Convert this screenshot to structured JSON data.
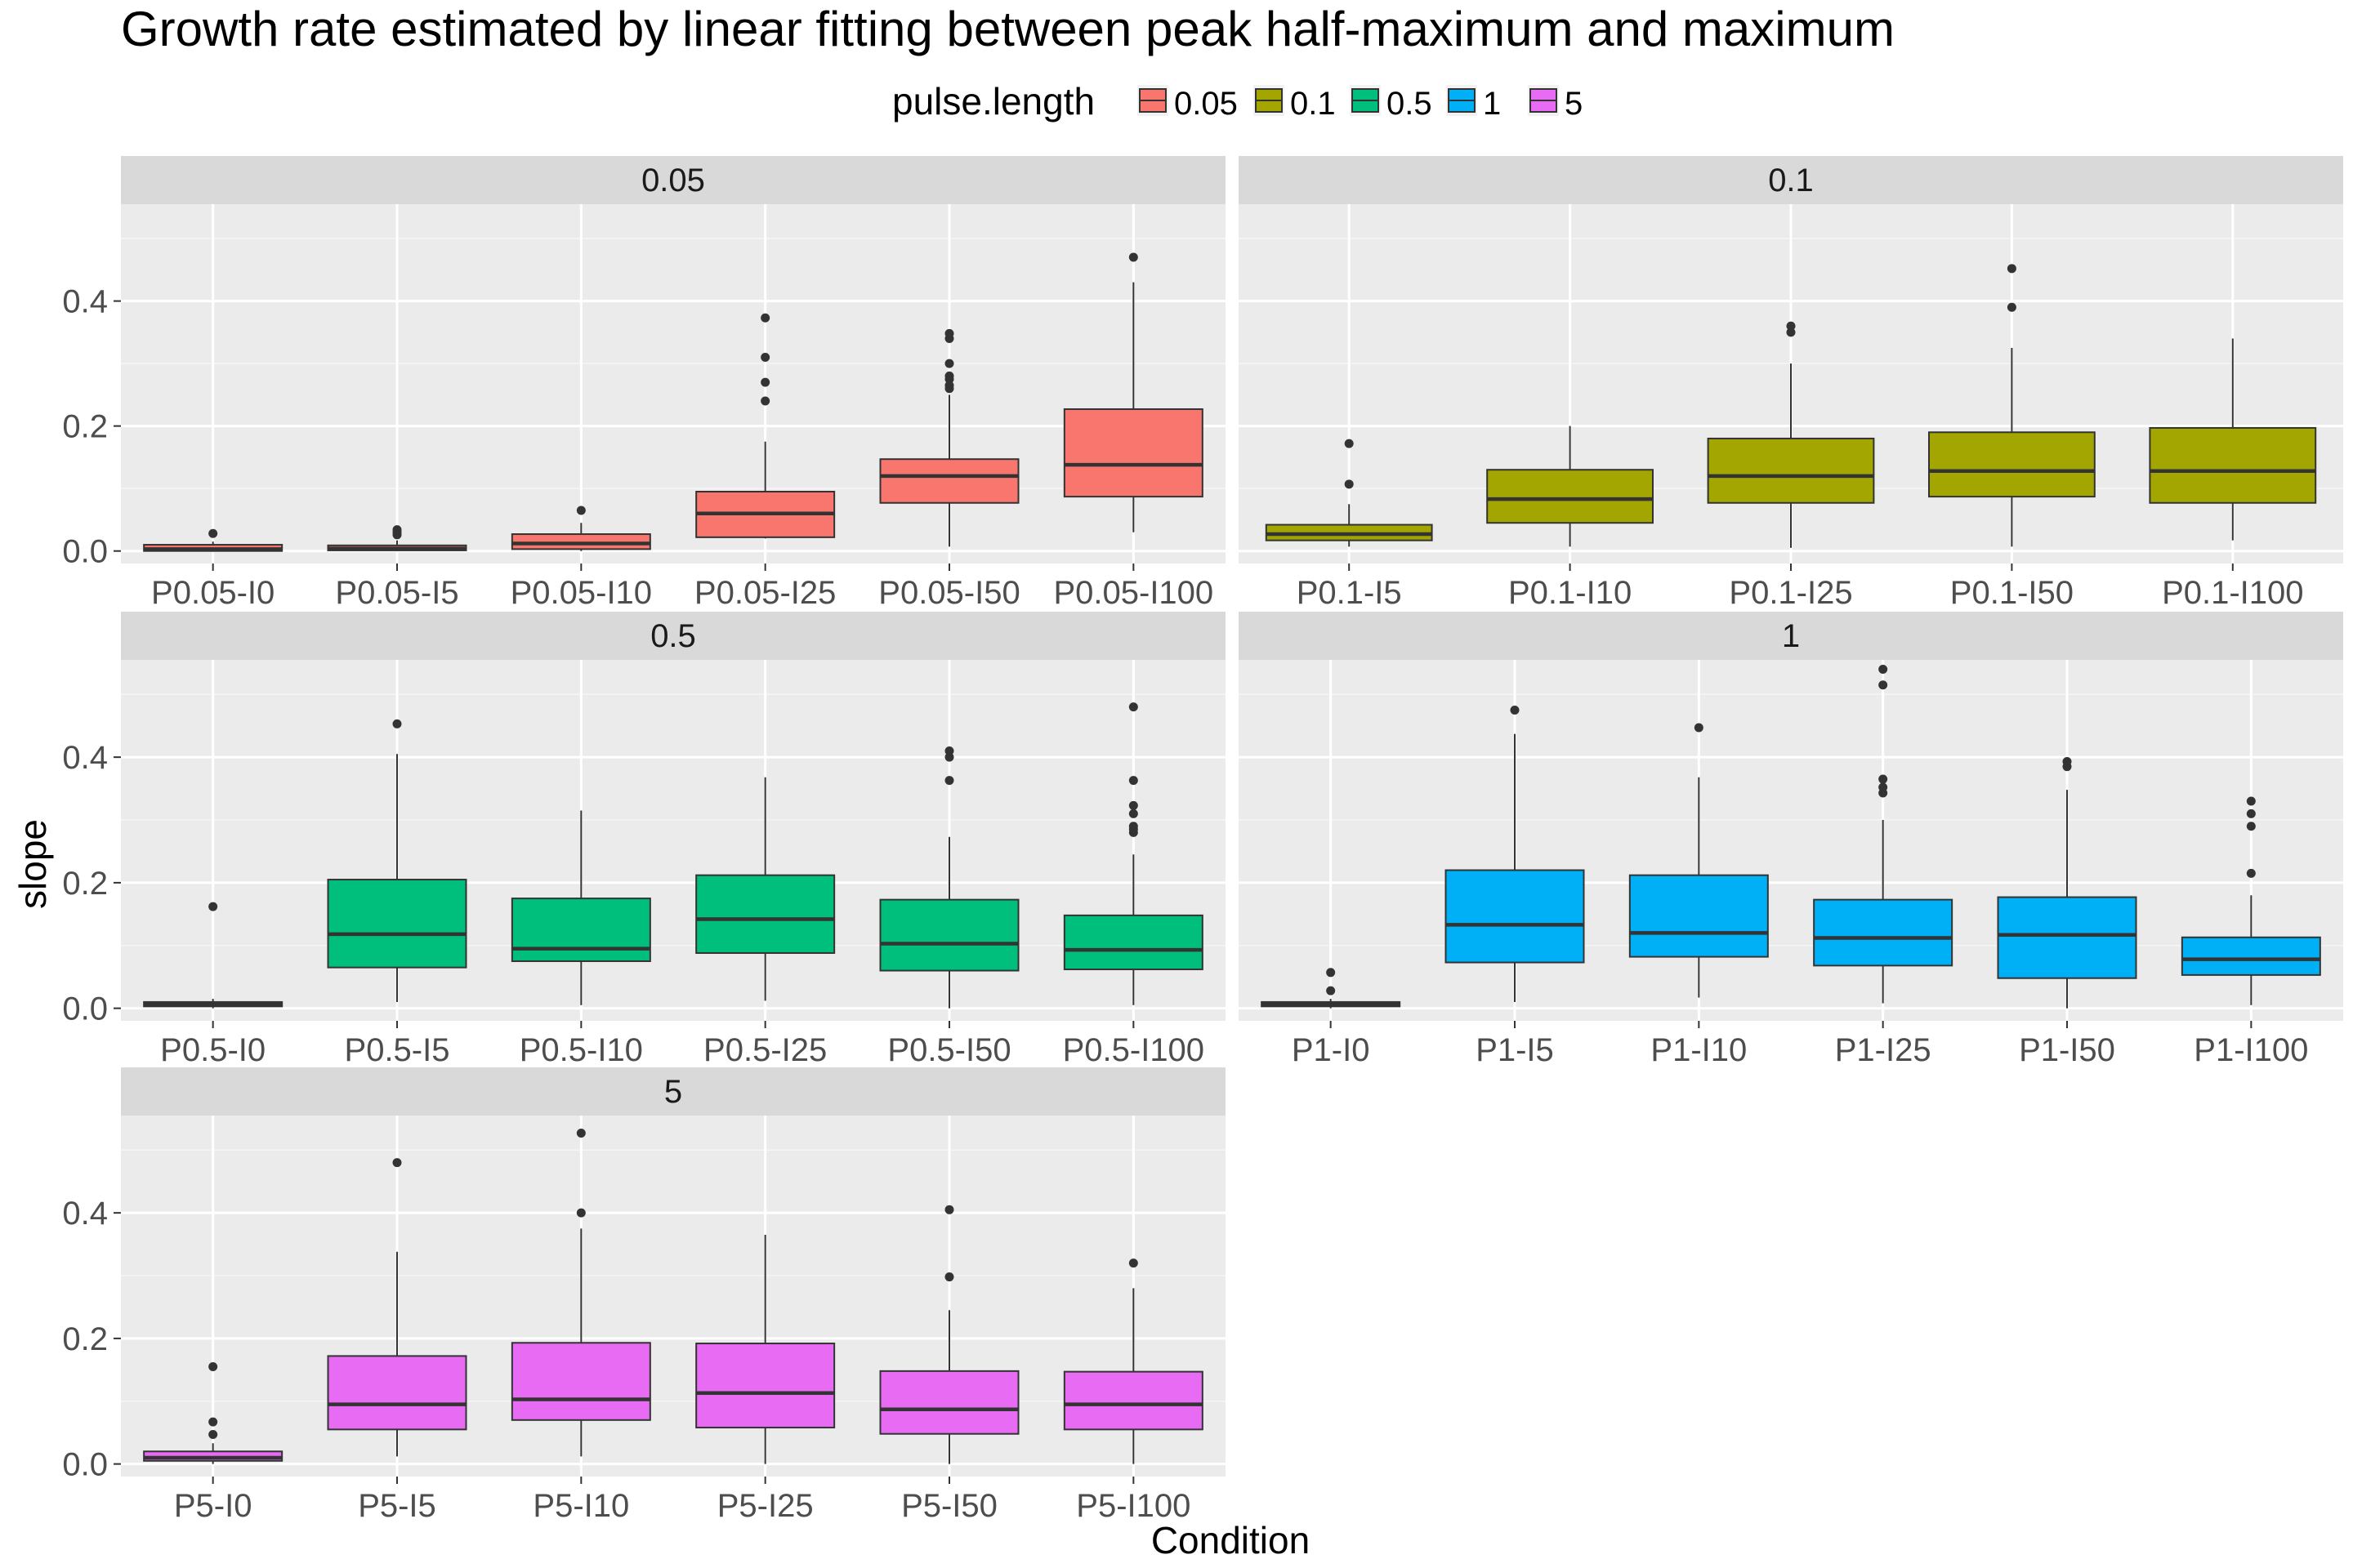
{
  "chart_data": {
    "type": "box",
    "title": "Growth rate estimated by linear fitting between peak half-maximum and maximum",
    "xlabel": "Condition",
    "ylabel": "slope",
    "ylim": [
      -0.02,
      0.555
    ],
    "y_ticks": [
      "0.0",
      "0.2",
      "0.4"
    ],
    "y_tick_values": [
      0,
      0.2,
      0.4
    ],
    "grid": true,
    "legend": {
      "title": "pulse.length",
      "position": "top",
      "entries": [
        {
          "label": "0.05",
          "color": "#F8766D"
        },
        {
          "label": "0.1",
          "color": "#A3A500"
        },
        {
          "label": "0.5",
          "color": "#00BF7D"
        },
        {
          "label": "1",
          "color": "#00B0F6"
        },
        {
          "label": "5",
          "color": "#E76BF3"
        }
      ]
    },
    "panels": [
      {
        "strip": "0.05",
        "color": "#F8766D",
        "boxes": [
          {
            "label": "P0.05-I0",
            "whisker_low": 0.0,
            "q1": 0.0,
            "median": 0.003,
            "q3": 0.01,
            "whisker_high": 0.015,
            "outliers": [
              0.028
            ]
          },
          {
            "label": "P0.05-I5",
            "whisker_low": 0.0,
            "q1": 0.001,
            "median": 0.004,
            "q3": 0.009,
            "whisker_high": 0.017,
            "outliers": [
              0.026,
              0.03,
              0.034
            ]
          },
          {
            "label": "P0.05-I10",
            "whisker_low": 0.0,
            "q1": 0.003,
            "median": 0.012,
            "q3": 0.027,
            "whisker_high": 0.045,
            "outliers": [
              0.065
            ]
          },
          {
            "label": "P0.05-I25",
            "whisker_low": 0.02,
            "q1": 0.022,
            "median": 0.06,
            "q3": 0.095,
            "whisker_high": 0.175,
            "outliers": [
              0.24,
              0.27,
              0.31,
              0.373
            ]
          },
          {
            "label": "P0.05-I50",
            "whisker_low": 0.007,
            "q1": 0.077,
            "median": 0.12,
            "q3": 0.147,
            "whisker_high": 0.25,
            "outliers": [
              0.26,
              0.265,
              0.275,
              0.28,
              0.3,
              0.34,
              0.348
            ]
          },
          {
            "label": "P0.05-I100",
            "whisker_low": 0.03,
            "q1": 0.087,
            "median": 0.138,
            "q3": 0.227,
            "whisker_high": 0.43,
            "outliers": [
              0.47
            ]
          }
        ]
      },
      {
        "strip": "0.1",
        "color": "#A3A500",
        "boxes": [
          {
            "label": "P0.1-I5",
            "whisker_low": 0.007,
            "q1": 0.017,
            "median": 0.027,
            "q3": 0.042,
            "whisker_high": 0.075,
            "outliers": [
              0.107,
              0.172
            ]
          },
          {
            "label": "P0.1-I10",
            "whisker_low": 0.007,
            "q1": 0.045,
            "median": 0.083,
            "q3": 0.13,
            "whisker_high": 0.2,
            "outliers": []
          },
          {
            "label": "P0.1-I25",
            "whisker_low": 0.005,
            "q1": 0.077,
            "median": 0.12,
            "q3": 0.18,
            "whisker_high": 0.3,
            "outliers": [
              0.35,
              0.36
            ]
          },
          {
            "label": "P0.1-I50",
            "whisker_low": 0.007,
            "q1": 0.087,
            "median": 0.128,
            "q3": 0.19,
            "whisker_high": 0.325,
            "outliers": [
              0.39,
              0.452
            ]
          },
          {
            "label": "P0.1-I100",
            "whisker_low": 0.017,
            "q1": 0.077,
            "median": 0.128,
            "q3": 0.197,
            "whisker_high": 0.34,
            "outliers": []
          }
        ]
      },
      {
        "strip": "0.5",
        "color": "#00BF7D",
        "boxes": [
          {
            "label": "P0.5-I0",
            "whisker_low": 0.0,
            "q1": 0.003,
            "median": 0.006,
            "q3": 0.01,
            "whisker_high": 0.015,
            "outliers": [
              0.162
            ]
          },
          {
            "label": "P0.5-I5",
            "whisker_low": 0.01,
            "q1": 0.065,
            "median": 0.118,
            "q3": 0.205,
            "whisker_high": 0.405,
            "outliers": [
              0.453
            ]
          },
          {
            "label": "P0.5-I10",
            "whisker_low": 0.005,
            "q1": 0.075,
            "median": 0.095,
            "q3": 0.175,
            "whisker_high": 0.315,
            "outliers": []
          },
          {
            "label": "P0.5-I25",
            "whisker_low": 0.012,
            "q1": 0.088,
            "median": 0.142,
            "q3": 0.212,
            "whisker_high": 0.368,
            "outliers": []
          },
          {
            "label": "P0.5-I50",
            "whisker_low": 0.0,
            "q1": 0.06,
            "median": 0.103,
            "q3": 0.173,
            "whisker_high": 0.273,
            "outliers": [
              0.363,
              0.4,
              0.41
            ]
          },
          {
            "label": "P0.5-I100",
            "whisker_low": 0.005,
            "q1": 0.062,
            "median": 0.093,
            "q3": 0.148,
            "whisker_high": 0.245,
            "outliers": [
              0.28,
              0.285,
              0.29,
              0.31,
              0.323,
              0.363,
              0.48
            ]
          }
        ]
      },
      {
        "strip": "1",
        "color": "#00B0F6",
        "boxes": [
          {
            "label": "P1-I0",
            "whisker_low": 0.0,
            "q1": 0.003,
            "median": 0.006,
            "q3": 0.01,
            "whisker_high": 0.015,
            "outliers": [
              0.028,
              0.057
            ]
          },
          {
            "label": "P1-I5",
            "whisker_low": 0.01,
            "q1": 0.073,
            "median": 0.133,
            "q3": 0.22,
            "whisker_high": 0.437,
            "outliers": [
              0.475
            ]
          },
          {
            "label": "P1-I10",
            "whisker_low": 0.017,
            "q1": 0.082,
            "median": 0.12,
            "q3": 0.212,
            "whisker_high": 0.368,
            "outliers": [
              0.447
            ]
          },
          {
            "label": "P1-I25",
            "whisker_low": 0.008,
            "q1": 0.068,
            "median": 0.112,
            "q3": 0.173,
            "whisker_high": 0.3,
            "outliers": [
              0.343,
              0.352,
              0.365,
              0.515,
              0.54
            ]
          },
          {
            "label": "P1-I50",
            "whisker_low": 0.0,
            "q1": 0.048,
            "median": 0.117,
            "q3": 0.177,
            "whisker_high": 0.348,
            "outliers": [
              0.385,
              0.393
            ]
          },
          {
            "label": "P1-I100",
            "whisker_low": 0.005,
            "q1": 0.053,
            "median": 0.078,
            "q3": 0.113,
            "whisker_high": 0.18,
            "outliers": [
              0.215,
              0.29,
              0.31,
              0.33
            ]
          }
        ]
      },
      {
        "strip": "5",
        "color": "#E76BF3",
        "boxes": [
          {
            "label": "P5-I0",
            "whisker_low": 0.0,
            "q1": 0.005,
            "median": 0.01,
            "q3": 0.02,
            "whisker_high": 0.033,
            "outliers": [
              0.047,
              0.067,
              0.155
            ]
          },
          {
            "label": "P5-I5",
            "whisker_low": 0.012,
            "q1": 0.055,
            "median": 0.095,
            "q3": 0.172,
            "whisker_high": 0.338,
            "outliers": [
              0.48
            ]
          },
          {
            "label": "P5-I10",
            "whisker_low": 0.012,
            "q1": 0.07,
            "median": 0.103,
            "q3": 0.193,
            "whisker_high": 0.375,
            "outliers": [
              0.4,
              0.527
            ]
          },
          {
            "label": "P5-I25",
            "whisker_low": 0.0,
            "q1": 0.058,
            "median": 0.113,
            "q3": 0.192,
            "whisker_high": 0.365,
            "outliers": []
          },
          {
            "label": "P5-I50",
            "whisker_low": 0.0,
            "q1": 0.048,
            "median": 0.087,
            "q3": 0.148,
            "whisker_high": 0.245,
            "outliers": [
              0.298,
              0.405
            ]
          },
          {
            "label": "P5-I100",
            "whisker_low": 0.0,
            "q1": 0.055,
            "median": 0.095,
            "q3": 0.147,
            "whisker_high": 0.28,
            "outliers": [
              0.32
            ]
          }
        ]
      }
    ]
  }
}
